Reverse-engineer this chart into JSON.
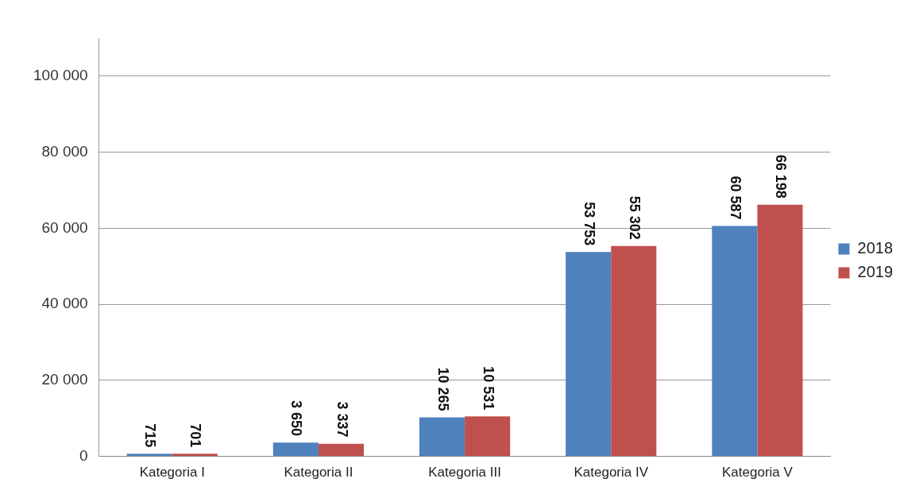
{
  "chart_data": {
    "type": "bar",
    "categories": [
      "Kategoria I",
      "Kategoria II",
      "Kategoria III",
      "Kategoria IV",
      "Kategoria V"
    ],
    "series": [
      {
        "name": "2018",
        "color": "#4f81bd",
        "values": [
          715,
          3650,
          10265,
          53753,
          60587
        ]
      },
      {
        "name": "2019",
        "color": "#c0504d",
        "values": [
          701,
          3337,
          10531,
          55302,
          66198
        ]
      }
    ],
    "ylim": [
      0,
      110000
    ],
    "yticks": [
      {
        "value": 0,
        "label": "0"
      },
      {
        "value": 20000,
        "label": "20 000"
      },
      {
        "value": 40000,
        "label": "40 000"
      },
      {
        "value": 60000,
        "label": "60 000"
      },
      {
        "value": 80000,
        "label": "80 000"
      },
      {
        "value": 100000,
        "label": "100 000"
      }
    ],
    "grid": "y",
    "legend": "right",
    "data_labels": true
  }
}
